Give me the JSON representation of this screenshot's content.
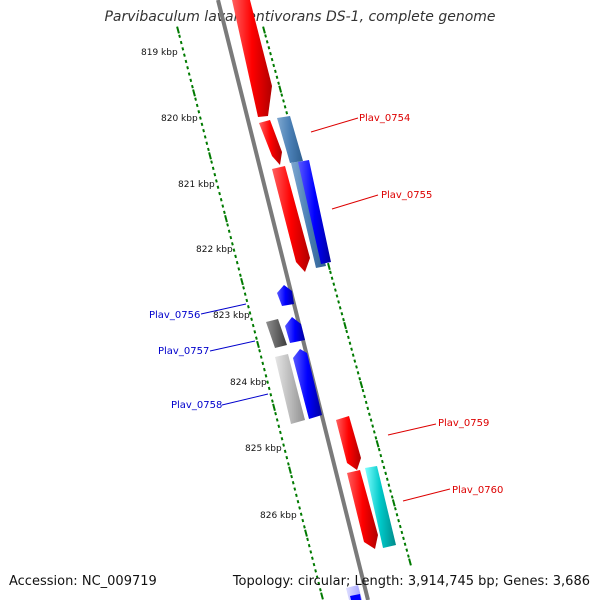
{
  "title": "Parvibaculum lavamentivorans DS-1, complete genome",
  "footer": {
    "accession_label": "Accession:",
    "accession": "NC_009719",
    "topology_label": "Topology:",
    "topology": "circular;",
    "length_label": "Length:",
    "length": "3,914,745 bp;",
    "genes_label": "Genes:",
    "genes": "3,686"
  },
  "ticks": [
    "819 kbp",
    "820 kbp",
    "821 kbp",
    "822 kbp",
    "823 kbp",
    "824 kbp",
    "825 kbp",
    "826 kbp"
  ],
  "gene_labels": [
    {
      "name": "Plav_0754",
      "color": "#dd0000"
    },
    {
      "name": "Plav_0755",
      "color": "#dd0000"
    },
    {
      "name": "Plav_0756",
      "color": "#0000cc"
    },
    {
      "name": "Plav_0757",
      "color": "#0000cc"
    },
    {
      "name": "Plav_0758",
      "color": "#0000cc"
    },
    {
      "name": "Plav_0759",
      "color": "#dd0000"
    },
    {
      "name": "Plav_0760",
      "color": "#dd0000"
    }
  ],
  "colors": {
    "tick_dots": "#007a00",
    "backbone": "#7a7a7a",
    "gene_red": "#ff0000",
    "gene_blue": "#0000ff",
    "gene_steel": "#4a7fb5",
    "gene_gray": "#666666",
    "gene_lightgray": "#b8b8b8",
    "gene_cyan": "#00c8c8"
  }
}
